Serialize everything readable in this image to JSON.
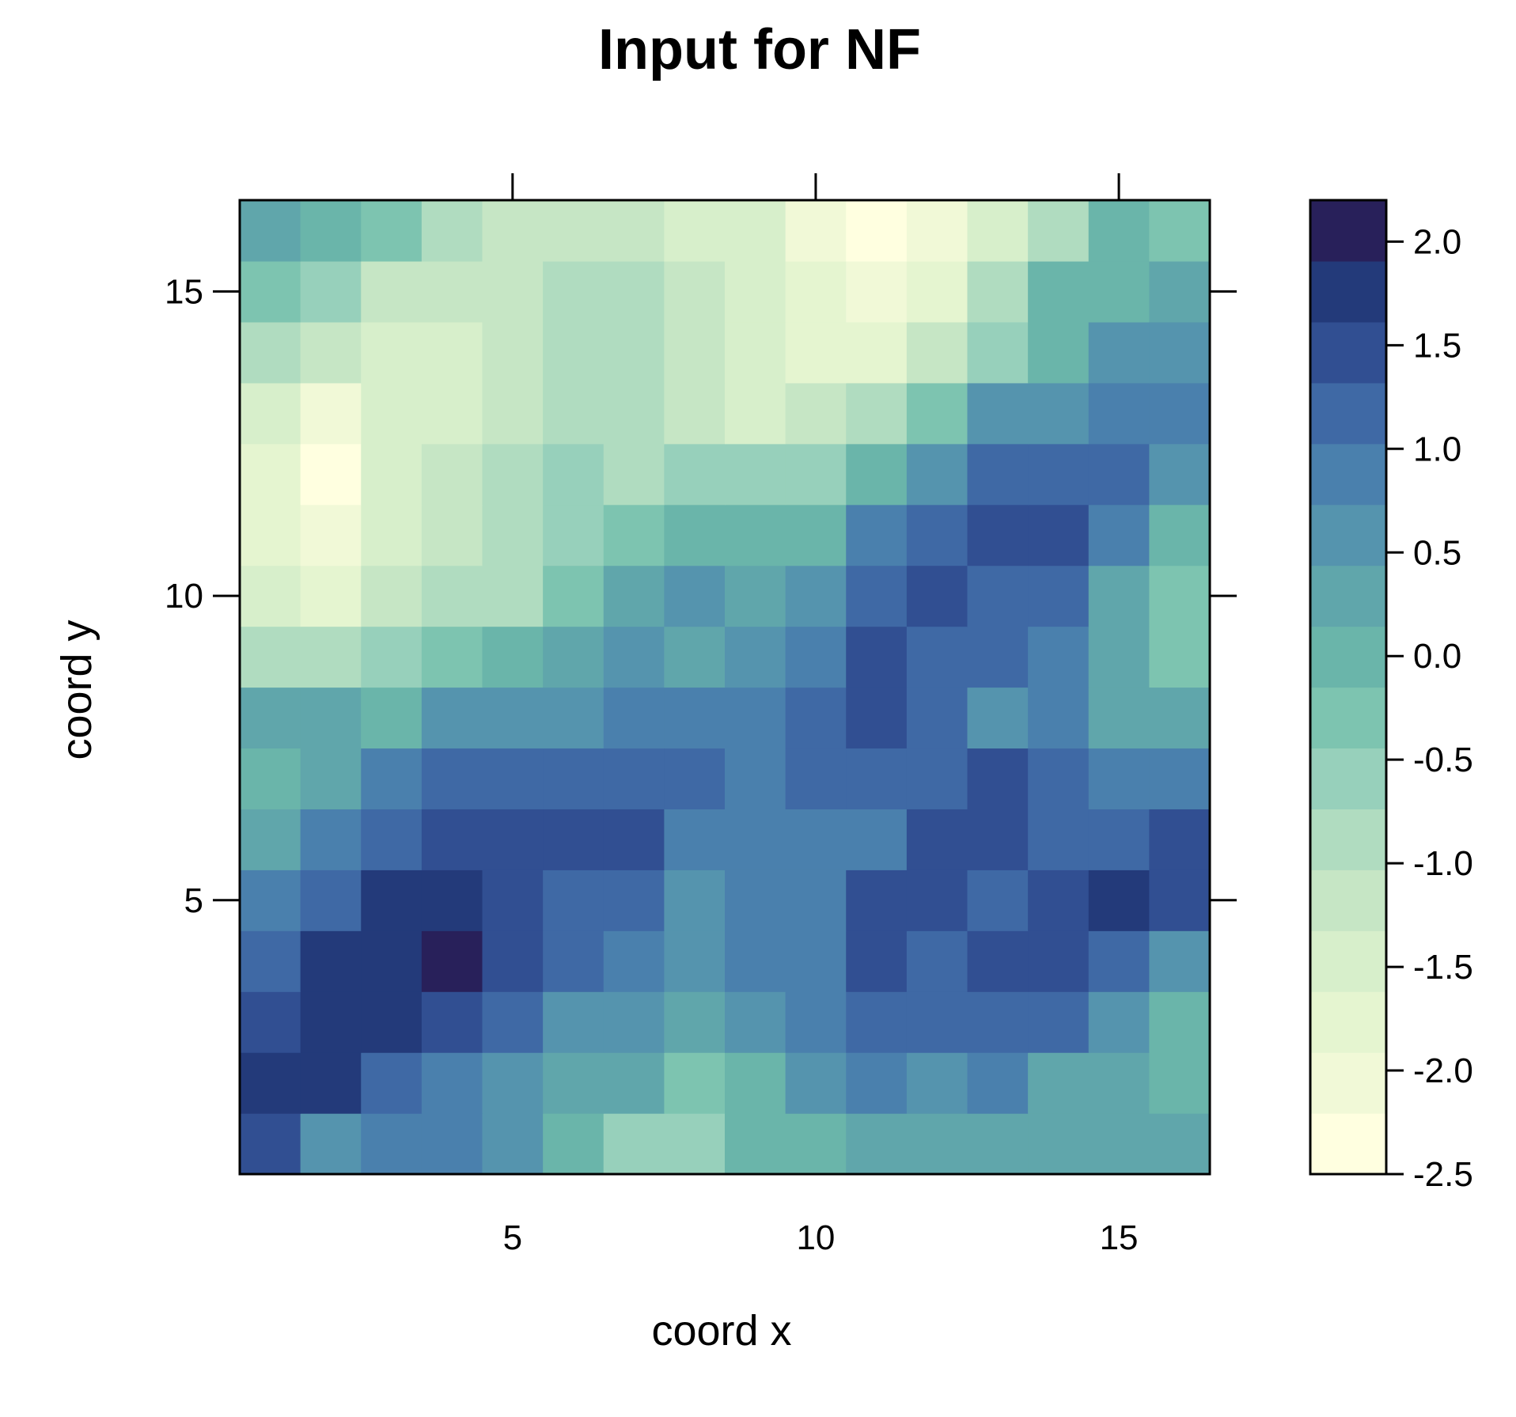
{
  "chart_data": {
    "type": "heatmap",
    "title": "Input for NF",
    "xlabel": "coord x",
    "ylabel": "coord y",
    "x": [
      1,
      2,
      3,
      4,
      5,
      6,
      7,
      8,
      9,
      10,
      11,
      12,
      13,
      14,
      15,
      16
    ],
    "y": [
      1,
      2,
      3,
      4,
      5,
      6,
      7,
      8,
      9,
      10,
      11,
      12,
      13,
      14,
      15,
      16
    ],
    "xlim": [
      0.5,
      16.5
    ],
    "ylim": [
      0.5,
      16.5
    ],
    "xticks": [
      5,
      10,
      15
    ],
    "yticks": [
      5,
      10,
      15
    ],
    "grid": false,
    "values": [
      [
        1.5,
        0.7,
        0.8,
        0.8,
        0.5,
        0.0,
        -0.6,
        -0.6,
        0.0,
        0.0,
        0.3,
        0.3,
        0.3,
        0.3,
        0.3,
        0.3
      ],
      [
        1.8,
        1.8,
        1.2,
        0.9,
        0.5,
        0.3,
        0.3,
        -0.4,
        0.0,
        0.5,
        0.9,
        0.5,
        0.8,
        0.3,
        0.2,
        0.0
      ],
      [
        1.5,
        1.8,
        1.8,
        1.5,
        1.1,
        0.5,
        0.5,
        0.4,
        0.6,
        0.9,
        1.1,
        1.1,
        1.1,
        1.1,
        0.5,
        0.0
      ],
      [
        1.2,
        1.8,
        1.8,
        2.2,
        1.5,
        1.1,
        0.9,
        0.5,
        0.9,
        0.9,
        1.5,
        1.1,
        1.5,
        1.5,
        1.1,
        0.5
      ],
      [
        0.9,
        1.2,
        1.8,
        1.8,
        1.5,
        1.2,
        1.2,
        0.5,
        0.9,
        0.9,
        1.5,
        1.5,
        1.2,
        1.5,
        1.8,
        1.5
      ],
      [
        0.3,
        0.9,
        1.2,
        1.5,
        1.5,
        1.5,
        1.5,
        0.9,
        0.9,
        0.9,
        0.9,
        1.5,
        1.5,
        1.2,
        1.2,
        1.5
      ],
      [
        0.1,
        0.4,
        0.9,
        1.2,
        1.2,
        1.2,
        1.2,
        1.2,
        0.9,
        1.2,
        1.2,
        1.2,
        1.5,
        1.2,
        0.9,
        0.9
      ],
      [
        0.2,
        0.2,
        0.0,
        0.5,
        0.5,
        0.5,
        0.9,
        0.9,
        0.9,
        1.2,
        1.5,
        1.2,
        0.6,
        0.8,
        0.2,
        0.3
      ],
      [
        -1.0,
        -1.0,
        -0.7,
        -0.4,
        0.0,
        0.2,
        0.5,
        0.3,
        0.6,
        0.9,
        1.5,
        1.2,
        1.2,
        0.8,
        0.2,
        -0.4
      ],
      [
        -1.5,
        -1.8,
        -1.2,
        -0.9,
        -0.9,
        -0.4,
        0.3,
        0.5,
        0.3,
        0.5,
        1.2,
        1.5,
        1.2,
        1.2,
        0.2,
        -0.4
      ],
      [
        -1.8,
        -2.0,
        -1.5,
        -1.2,
        -0.9,
        -0.5,
        -0.4,
        0.0,
        0.0,
        0.0,
        0.8,
        1.2,
        1.5,
        1.5,
        0.9,
        0.0
      ],
      [
        -1.8,
        -2.3,
        -1.5,
        -1.2,
        -0.9,
        -0.6,
        -0.9,
        -0.6,
        -0.6,
        -0.6,
        0.0,
        0.5,
        1.2,
        1.2,
        1.2,
        0.5
      ],
      [
        -1.5,
        -2.0,
        -1.5,
        -1.5,
        -1.2,
        -0.9,
        -0.9,
        -1.2,
        -1.5,
        -1.2,
        -0.9,
        -0.4,
        0.5,
        0.5,
        0.9,
        0.8
      ],
      [
        -1.0,
        -1.2,
        -1.6,
        -1.6,
        -1.2,
        -0.9,
        -0.9,
        -1.2,
        -1.5,
        -1.8,
        -1.8,
        -1.2,
        -0.7,
        0.0,
        0.5,
        0.5
      ],
      [
        -0.4,
        -0.7,
        -1.2,
        -1.2,
        -1.2,
        -0.9,
        -0.9,
        -1.2,
        -1.5,
        -1.8,
        -2.0,
        -1.8,
        -0.9,
        0.0,
        0.0,
        0.3
      ],
      [
        0.3,
        0.0,
        -0.4,
        -0.9,
        -1.2,
        -1.2,
        -1.2,
        -1.5,
        -1.5,
        -2.0,
        -2.5,
        -2.0,
        -1.6,
        -0.9,
        0.0,
        -0.4
      ]
    ],
    "colorbar": {
      "min": -2.5,
      "max": 2.2,
      "ticks": [
        2.0,
        1.5,
        1.0,
        0.5,
        0.0,
        -0.5,
        -1.0,
        -1.5,
        -2.0,
        -2.5
      ],
      "tick_labels": [
        "2.0",
        "1.5",
        "1.0",
        "0.5",
        "0.0",
        "-0.5",
        "-1.0",
        "-1.5",
        "-2.0",
        "-2.5"
      ],
      "levels": 16,
      "palette": [
        "#ffffe0",
        "#f1f9d7",
        "#e5f5d0",
        "#d7efcb",
        "#c6e6c5",
        "#b0dcc0",
        "#97d0bb",
        "#7dc4b0",
        "#6ab5aa",
        "#60a6ab",
        "#5594ae",
        "#4a80ad",
        "#3f69a5",
        "#314f92",
        "#233a7a",
        "#28205a"
      ]
    }
  }
}
